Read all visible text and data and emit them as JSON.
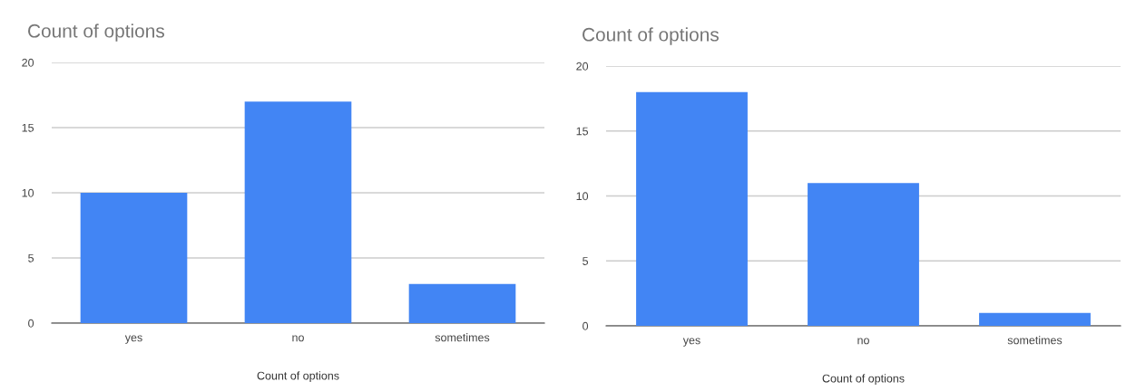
{
  "chart_data": [
    {
      "type": "bar",
      "title": "Count of options",
      "xlabel": "Count of options",
      "categories": [
        "yes",
        "no",
        "sometimes"
      ],
      "values": [
        10,
        17,
        3
      ],
      "color": "#4285f4",
      "ylim": [
        0,
        20
      ],
      "yticks": [
        0,
        5,
        10,
        15,
        20
      ],
      "grid": "y"
    },
    {
      "type": "bar",
      "title": "Count of options",
      "xlabel": "Count of options",
      "categories": [
        "yes",
        "no",
        "sometimes"
      ],
      "values": [
        18,
        11,
        1
      ],
      "color": "#4285f4",
      "ylim": [
        0,
        20
      ],
      "yticks": [
        0,
        5,
        10,
        15,
        20
      ],
      "grid": "y"
    }
  ]
}
